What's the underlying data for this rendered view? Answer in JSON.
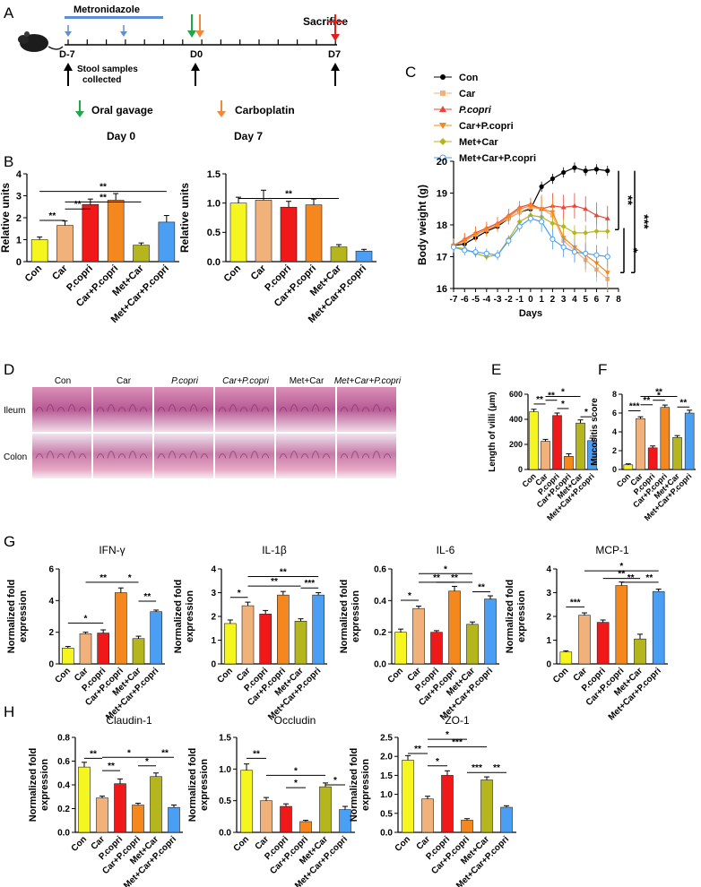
{
  "colors": {
    "yellow": "#f5f51f",
    "tan": "#f0b27a",
    "red": "#f01818",
    "orange": "#f5871f",
    "olive": "#b5b51e",
    "blue": "#4a9ff5",
    "metro_bar": "#5b8fd6",
    "gavage": "#1fa84a",
    "carbo": "#ee8a3a",
    "sacrifice": "#e4201c",
    "con_line": "#000000"
  },
  "panel_letters": {
    "a": "A",
    "b": "B",
    "c": "C",
    "d": "D",
    "e": "E",
    "f": "F",
    "g": "G",
    "h": "H"
  },
  "timeline": {
    "metronidazole": "Metronidazole",
    "sacrifice": "Sacrifice",
    "d_minus7": "D-7",
    "d0": "D0",
    "d7": "D7",
    "stool_line1": "Stool samples",
    "stool_line2": "collected",
    "oral_gavage": "Oral gavage",
    "carboplatin": "Carboplatin",
    "day0": "Day 0",
    "day7": "Day 7"
  },
  "groups_plain": [
    "Con",
    "Car",
    "P.copri",
    "Car+P.copri",
    "Met+Car",
    "Met+Car+P.copri"
  ],
  "histology": {
    "columns": [
      "Con",
      "Car",
      "P.copri",
      "Car+P.copri",
      "Met+Car",
      "Met+Car+P.copri"
    ],
    "rows": [
      "Ileum",
      "Colon"
    ]
  },
  "chart_data": [
    {
      "id": "B1",
      "type": "bar",
      "categories": [
        "Con",
        "Car",
        "P.copri",
        "Car+P.copri",
        "Met+Car",
        "Met+Car+P.copri"
      ],
      "values": [
        1.0,
        1.65,
        2.6,
        2.8,
        0.75,
        1.8
      ],
      "errors": [
        0.12,
        0.2,
        0.25,
        0.3,
        0.1,
        0.3
      ],
      "ylabel": "Relative units",
      "ylim": [
        0,
        4
      ],
      "yticks": [
        "0",
        "1",
        "2",
        "3",
        "4"
      ],
      "significance": [
        "**",
        "**",
        "**",
        "**"
      ]
    },
    {
      "id": "B2",
      "type": "bar",
      "categories": [
        "Con",
        "Car",
        "P.copri",
        "Car+P.copri",
        "Met+Car",
        "Met+Car+P.copri"
      ],
      "values": [
        1.0,
        1.05,
        0.93,
        0.97,
        0.25,
        0.18
      ],
      "errors": [
        0.1,
        0.17,
        0.1,
        0.1,
        0.04,
        0.03
      ],
      "ylabel": "Relative units",
      "ylim": [
        0,
        1.5
      ],
      "yticks": [
        "0.0",
        "0.5",
        "1.0",
        "1.5"
      ],
      "significance": [
        "**"
      ]
    },
    {
      "id": "C",
      "type": "line",
      "x": [
        -7,
        -6,
        -5,
        -4,
        -3,
        -2,
        -1,
        0,
        1,
        2,
        3,
        4,
        5,
        6,
        7
      ],
      "xticks": [
        "-7",
        "-6",
        "-5",
        "-4",
        "-3",
        "-2",
        "-1",
        "0",
        "1",
        "2",
        "3",
        "4",
        "5",
        "6",
        "7",
        "8"
      ],
      "xlabel": "Days",
      "ylabel": "Body weight (g)",
      "ylim": [
        16,
        20
      ],
      "yticks": [
        "16",
        "17",
        "18",
        "19",
        "20"
      ],
      "legend": "top-left",
      "series": [
        {
          "name": "Con",
          "values": [
            17.35,
            17.4,
            17.6,
            17.8,
            17.95,
            18.2,
            18.4,
            18.5,
            19.2,
            19.45,
            19.65,
            19.8,
            19.7,
            19.75,
            19.7
          ]
        },
        {
          "name": "Car",
          "values": [
            17.35,
            17.5,
            17.7,
            17.85,
            18.0,
            18.2,
            18.4,
            18.55,
            18.5,
            18.3,
            17.5,
            17.2,
            16.9,
            16.6,
            16.3
          ]
        },
        {
          "name": "P.copri",
          "values": [
            17.35,
            17.55,
            17.75,
            17.9,
            18.05,
            18.3,
            18.55,
            18.65,
            18.5,
            18.6,
            18.55,
            18.6,
            18.5,
            18.3,
            18.2
          ]
        },
        {
          "name": "Car+P.copri",
          "values": [
            17.35,
            17.5,
            17.7,
            17.85,
            18.0,
            18.25,
            18.5,
            18.6,
            18.5,
            18.4,
            17.6,
            17.3,
            17.05,
            16.8,
            16.5
          ]
        },
        {
          "name": "Met+Car",
          "values": [
            17.3,
            17.25,
            17.1,
            17.0,
            17.05,
            17.55,
            18.1,
            18.3,
            18.25,
            18.05,
            17.95,
            17.75,
            17.75,
            17.8,
            17.8
          ]
        },
        {
          "name": "Met+Car+P.copri",
          "values": [
            17.3,
            17.2,
            17.15,
            17.1,
            17.05,
            17.5,
            17.95,
            18.2,
            18.1,
            17.55,
            17.3,
            17.15,
            17.1,
            17.05,
            17.0
          ]
        }
      ],
      "significance": [
        "**",
        "***",
        "*"
      ]
    },
    {
      "id": "E",
      "type": "bar",
      "categories": [
        "Con",
        "Car",
        "P.copri",
        "Car+P.copri",
        "Met+Car",
        "Met+Car+P.copri"
      ],
      "values": [
        460,
        225,
        430,
        105,
        370,
        230
      ],
      "errors": [
        20,
        15,
        20,
        20,
        25,
        20
      ],
      "ylabel": "Length of villi (μm)",
      "ylim": [
        0,
        600
      ],
      "yticks": [
        "0",
        "200",
        "400",
        "600"
      ],
      "significance": [
        "**",
        "**",
        "*",
        "*",
        "*"
      ]
    },
    {
      "id": "F",
      "type": "bar",
      "categories": [
        "Con",
        "Car",
        "P.copri",
        "Car+P.copri",
        "Met+Car",
        "Met+Car+P.copri"
      ],
      "values": [
        0.5,
        5.4,
        2.3,
        6.6,
        3.4,
        6.0
      ],
      "errors": [
        0.1,
        0.2,
        0.2,
        0.25,
        0.2,
        0.3
      ],
      "ylabel": "Mucositis score",
      "ylim": [
        0,
        8
      ],
      "yticks": [
        "0",
        "2",
        "4",
        "6",
        "8"
      ],
      "significance": [
        "***",
        "**",
        "*",
        "**",
        "**"
      ]
    },
    {
      "id": "G1",
      "type": "bar",
      "title": "IFN-γ",
      "categories": [
        "Con",
        "Car",
        "P.copri",
        "Car+P.copri",
        "Met+Car",
        "Met+Car+P.copri"
      ],
      "values": [
        1.0,
        1.9,
        1.95,
        4.5,
        1.6,
        3.3
      ],
      "errors": [
        0.1,
        0.1,
        0.2,
        0.3,
        0.15,
        0.1
      ],
      "ylabel": "Normalized fold expression",
      "ylim": [
        0,
        6
      ],
      "yticks": [
        "0",
        "2",
        "4",
        "6"
      ],
      "significance": [
        "*",
        "**",
        "*",
        "**"
      ]
    },
    {
      "id": "G2",
      "type": "bar",
      "title": "IL-1β",
      "categories": [
        "Con",
        "Car",
        "P.copri",
        "Car+P.copri",
        "Met+Car",
        "Met+Car+P.copri"
      ],
      "values": [
        1.7,
        2.45,
        2.1,
        2.9,
        1.8,
        2.9
      ],
      "errors": [
        0.15,
        0.15,
        0.15,
        0.15,
        0.1,
        0.1
      ],
      "ylabel": "Normalized fold expression",
      "ylim": [
        0,
        4
      ],
      "yticks": [
        "0",
        "1",
        "2",
        "3",
        "4"
      ],
      "significance": [
        "*",
        "**",
        "**",
        "***"
      ]
    },
    {
      "id": "G3",
      "type": "bar",
      "title": "IL-6",
      "categories": [
        "Con",
        "Car",
        "P.copri",
        "Car+P.copri",
        "Met+Car",
        "Met+Car+P.copri"
      ],
      "values": [
        0.2,
        0.35,
        0.2,
        0.46,
        0.25,
        0.41
      ],
      "errors": [
        0.02,
        0.015,
        0.01,
        0.03,
        0.015,
        0.02
      ],
      "ylabel": "Normalized fold expression",
      "ylim": [
        0,
        0.6
      ],
      "yticks": [
        "0.0",
        "0.2",
        "0.4",
        "0.6"
      ],
      "significance": [
        "*",
        "*",
        "**",
        "**",
        "**"
      ]
    },
    {
      "id": "G4",
      "type": "bar",
      "title": "MCP-1",
      "categories": [
        "Con",
        "Car",
        "P.copri",
        "Car+P.copri",
        "Met+Car",
        "Met+Car+P.copri"
      ],
      "values": [
        0.5,
        2.05,
        1.75,
        3.3,
        1.05,
        3.05
      ],
      "errors": [
        0.05,
        0.1,
        0.1,
        0.15,
        0.2,
        0.1
      ],
      "ylabel": "Normalized fold expression",
      "ylim": [
        0,
        4
      ],
      "yticks": [
        "0",
        "1",
        "2",
        "3",
        "4"
      ],
      "significance": [
        "***",
        "*",
        "**",
        "**",
        "**"
      ]
    },
    {
      "id": "H1",
      "type": "bar",
      "title": "Claudin-1",
      "categories": [
        "Con",
        "Car",
        "P.copri",
        "Car+P.copri",
        "Met+Car",
        "Met+Car+P.copri"
      ],
      "values": [
        0.55,
        0.29,
        0.41,
        0.23,
        0.47,
        0.21
      ],
      "errors": [
        0.04,
        0.015,
        0.04,
        0.015,
        0.03,
        0.02
      ],
      "ylabel": "Normalized fold expression",
      "ylim": [
        0,
        0.8
      ],
      "yticks": [
        "0.0",
        "0.2",
        "0.4",
        "0.6",
        "0.8"
      ],
      "significance": [
        "**",
        "**",
        "*",
        "*",
        "**"
      ]
    },
    {
      "id": "H2",
      "type": "bar",
      "title": "Occludin",
      "categories": [
        "Con",
        "Car",
        "P.copri",
        "Car+P.copri",
        "Met+Car",
        "Met+Car+P.copri"
      ],
      "values": [
        0.98,
        0.5,
        0.41,
        0.17,
        0.72,
        0.36
      ],
      "errors": [
        0.1,
        0.05,
        0.04,
        0.02,
        0.06,
        0.05
      ],
      "ylabel": "Normalized fold expression",
      "ylim": [
        0,
        1.5
      ],
      "yticks": [
        "0.0",
        "0.5",
        "1.0",
        "1.5"
      ],
      "significance": [
        "**",
        "*",
        "*",
        "*"
      ]
    },
    {
      "id": "H3",
      "type": "bar",
      "title": "ZO-1",
      "categories": [
        "Con",
        "Car",
        "P.copri",
        "Car+P.copri",
        "Met+Car",
        "Met+Car+P.copri"
      ],
      "values": [
        1.9,
        0.88,
        1.5,
        0.32,
        1.38,
        0.66
      ],
      "errors": [
        0.12,
        0.07,
        0.12,
        0.04,
        0.08,
        0.04
      ],
      "ylabel": "Normalized fold expression",
      "ylim": [
        0,
        2.5
      ],
      "yticks": [
        "0.0",
        "0.5",
        "1.0",
        "1.5",
        "2.0",
        "2.5"
      ],
      "significance": [
        "**",
        "*",
        "***",
        "*",
        "***",
        "**"
      ]
    }
  ]
}
